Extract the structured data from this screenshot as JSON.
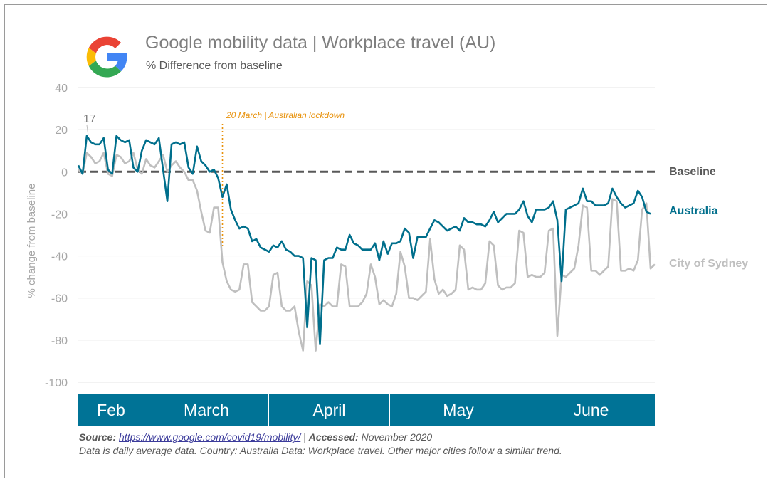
{
  "header": {
    "title": "Google mobility data | Workplace travel (AU)",
    "subtitle": "% Difference from baseline"
  },
  "footer": {
    "source_label": "Source:",
    "source_url": "https://www.google.com/covid19/mobility/",
    "separator": "|",
    "accessed_label": "Accessed:",
    "accessed_value": "November 2020",
    "note": "Data is daily average data. Country: Australia Data: Workplace travel.  Other major cities follow a similar trend."
  },
  "colors": {
    "australia": "#006f8c",
    "sydney": "#bfbfbf",
    "baseline": "#595959",
    "lockdown": "#e8920c",
    "month_band": "#007396",
    "axis_text": "#a6a6a6",
    "grid": "#e6e6e6"
  },
  "chart_data": {
    "type": "line",
    "title": "Google mobility data | Workplace travel (AU)",
    "subtitle": "% Difference from baseline",
    "ylabel": "% change from baseline",
    "ylim": [
      -100,
      40
    ],
    "yticks": [
      40,
      20,
      0,
      -20,
      -40,
      -60,
      -80,
      -100
    ],
    "grid": true,
    "x_start": "2020-02-15",
    "x_end": "2020-06-30",
    "months": [
      "Feb",
      "March",
      "April",
      "May",
      "June"
    ],
    "baseline": {
      "label": "Baseline",
      "value": 0
    },
    "annotations": [
      {
        "text": "17",
        "x": "2020-02-17",
        "y": 17
      },
      {
        "text": "20 March | Australian lockdown",
        "x": "2020-03-20"
      }
    ],
    "series": [
      {
        "name": "Australia",
        "values": [
          3,
          -1,
          17,
          14,
          13,
          13,
          16,
          1,
          -1,
          17,
          15,
          14,
          15,
          2,
          0,
          10,
          15,
          14,
          13,
          16,
          1,
          -14,
          13,
          14,
          13,
          14,
          2,
          -1,
          12,
          5,
          3,
          0,
          1,
          -3,
          -12,
          -6,
          -18,
          -23,
          -27,
          -26,
          -27,
          -33,
          -32,
          -36,
          -37,
          -38,
          -35,
          -36,
          -33,
          -37,
          -38,
          -40,
          -40,
          -41,
          -74,
          -41,
          -42,
          -82,
          -42,
          -41,
          -41,
          -36,
          -37,
          -37,
          -30,
          -34,
          -35,
          -37,
          -37,
          -37,
          -34,
          -42,
          -33,
          -39,
          -34,
          -34,
          -33,
          -27,
          -29,
          -41,
          -31,
          -31,
          -31,
          -27,
          -23,
          -24,
          -26,
          -28,
          -27,
          -26,
          -28,
          -22,
          -24,
          -24,
          -25,
          -25,
          -26,
          -23,
          -19,
          -24,
          -22,
          -20,
          -20,
          -20,
          -18,
          -14,
          -21,
          -24,
          -18,
          -18,
          -18,
          -17,
          -14,
          -23,
          -52,
          -18,
          -17,
          -16,
          -15,
          -8,
          -14,
          -14,
          -16,
          -16,
          -16,
          -15,
          -8,
          -12,
          -15,
          -17,
          -16,
          -15,
          -9,
          -12,
          -19,
          -20
        ]
      },
      {
        "name": "City of Sydney",
        "values": [
          1,
          -1,
          9,
          7,
          4,
          5,
          9,
          -1,
          -2,
          8,
          7,
          4,
          5,
          9,
          1,
          -1,
          6,
          3,
          2,
          5,
          8,
          0,
          3,
          5,
          2,
          0,
          -4,
          -4,
          -9,
          -19,
          -28,
          -29,
          -17,
          -17,
          -43,
          -52,
          -56,
          -57,
          -56,
          -44,
          -44,
          -62,
          -64,
          -66,
          -66,
          -64,
          -49,
          -48,
          -64,
          -66,
          -66,
          -64,
          -76,
          -85,
          -52,
          -54,
          -85,
          -63,
          -64,
          -62,
          -64,
          -64,
          -44,
          -45,
          -64,
          -64,
          -64,
          -62,
          -58,
          -44,
          -50,
          -63,
          -61,
          -63,
          -64,
          -58,
          -38,
          -45,
          -60,
          -60,
          -61,
          -59,
          -57,
          -32,
          -51,
          -58,
          -56,
          -59,
          -58,
          -56,
          -35,
          -37,
          -56,
          -55,
          -56,
          -56,
          -53,
          -33,
          -35,
          -54,
          -56,
          -55,
          -55,
          -53,
          -28,
          -29,
          -50,
          -49,
          -50,
          -50,
          -48,
          -28,
          -27,
          -78,
          -49,
          -50,
          -48,
          -46,
          -35,
          -16,
          -17,
          -47,
          -47,
          -49,
          -47,
          -45,
          -13,
          -14,
          -47,
          -47,
          -46,
          -47,
          -42,
          -18,
          -15,
          -46,
          -44
        ]
      }
    ]
  }
}
